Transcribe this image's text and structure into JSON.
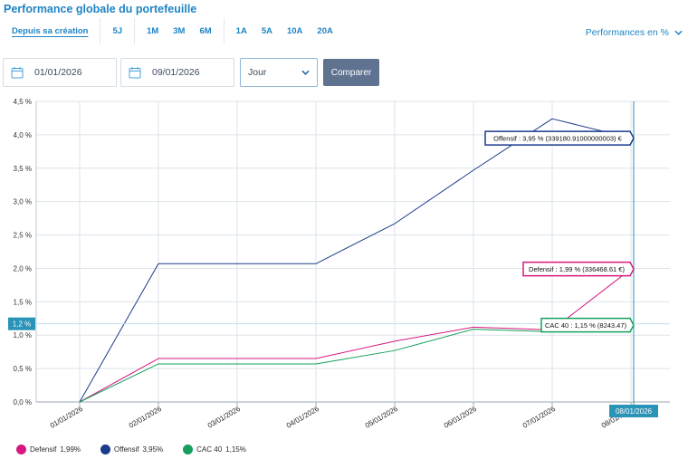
{
  "header": {
    "title": "Performance globale du portefeuille"
  },
  "periods": {
    "groups": [
      [
        {
          "label": "Depuis sa création",
          "active": true
        }
      ],
      [
        {
          "label": "5J"
        }
      ],
      [
        {
          "label": "1M"
        },
        {
          "label": "3M"
        },
        {
          "label": "6M"
        }
      ],
      [
        {
          "label": "1A"
        },
        {
          "label": "5A"
        },
        {
          "label": "10A"
        },
        {
          "label": "20A"
        }
      ]
    ]
  },
  "perf_select": {
    "label": "Performances en %"
  },
  "controls": {
    "start_date": "01/01/2026",
    "end_date": "09/01/2026",
    "granularity": "Jour",
    "compare_label": "Comparer"
  },
  "chart_data": {
    "type": "line",
    "title": "",
    "xlabel": "",
    "ylabel": "",
    "categories": [
      "01/01/2026",
      "02/01/2026",
      "03/01/2026",
      "04/01/2026",
      "05/01/2026",
      "06/01/2026",
      "07/01/2026",
      "08/01/2026"
    ],
    "y_ticks": [
      "0,0 %",
      "0,5 %",
      "1,0 %",
      "1,5 %",
      "2,0 %",
      "2,5 %",
      "3,0 %",
      "3,5 %",
      "4,0 %",
      "4,5 %"
    ],
    "ylim": [
      0,
      4.5
    ],
    "grid": true,
    "series": [
      {
        "name": "Offensif",
        "color": "#1c3a8a",
        "values": [
          0,
          2.07,
          2.07,
          2.07,
          2.67,
          3.47,
          4.24,
          3.95
        ]
      },
      {
        "name": "Defensif",
        "color": "#d6197e",
        "values": [
          0,
          0.65,
          0.65,
          0.65,
          0.91,
          1.12,
          1.08,
          1.99
        ]
      },
      {
        "name": "CAC 40",
        "color": "#14a05c",
        "values": [
          0,
          0.57,
          0.57,
          0.57,
          0.77,
          1.09,
          1.05,
          1.15
        ]
      }
    ],
    "crosshair": {
      "x_label": "08/01/2026",
      "y_label": "1,2 %",
      "y_value": 1.17
    },
    "tooltips": [
      {
        "series": "Offensif",
        "text": "Offensif : 3,95 % (339180.91000000003) €"
      },
      {
        "series": "Defensif",
        "text": "Defensif : 1,99 % (336468.61 €)"
      },
      {
        "series": "CAC 40",
        "text": "CAC 40 : 1,15 % (8243.47)"
      }
    ],
    "legend": [
      {
        "label": "Defensif",
        "value": "1,99%",
        "color": "#d6197e"
      },
      {
        "label": "Offensif",
        "value": "3,95%",
        "color": "#1c3a8a"
      },
      {
        "label": "CAC 40",
        "value": "1,15%",
        "color": "#14a05c"
      }
    ],
    "legend_position": "bottom-left"
  }
}
